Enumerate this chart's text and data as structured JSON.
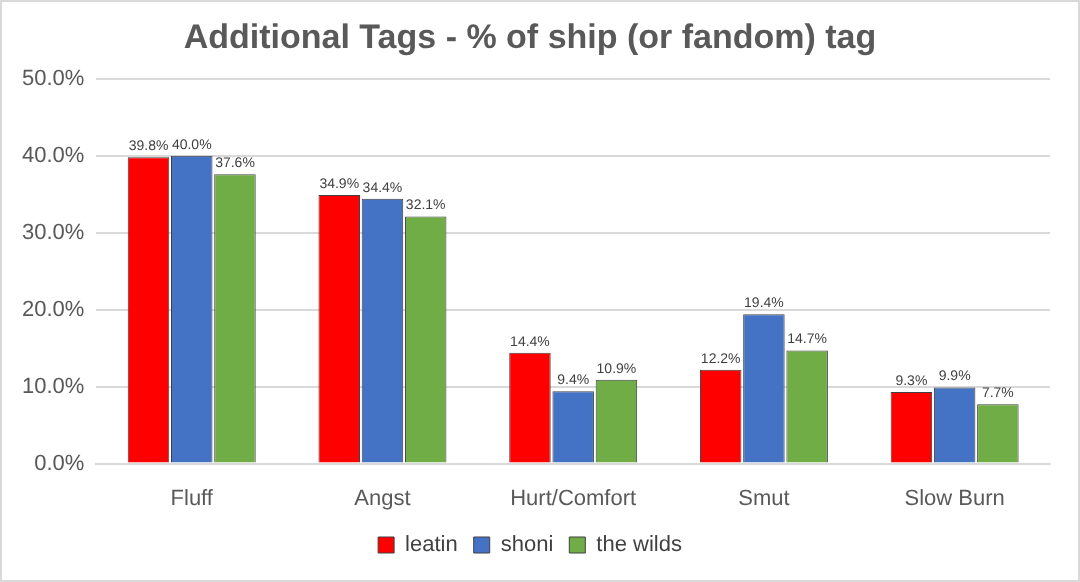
{
  "chart_data": {
    "type": "bar",
    "title": "Additional Tags - % of ship (or fandom) tag",
    "categories": [
      "Fluff",
      "Angst",
      "Hurt/Comfort",
      "Smut",
      "Slow Burn"
    ],
    "series": [
      {
        "name": "leatin",
        "color": "#ff0000",
        "values": [
          39.8,
          34.9,
          14.4,
          12.2,
          9.3
        ],
        "value_labels": [
          "39.8%",
          "34.9%",
          "14.4%",
          "12.2%",
          "9.3%"
        ]
      },
      {
        "name": "shoni",
        "color": "#4472c4",
        "values": [
          40.0,
          34.4,
          9.4,
          19.4,
          9.9
        ],
        "value_labels": [
          "40.0%",
          "34.4%",
          "9.4%",
          "19.4%",
          "9.9%"
        ]
      },
      {
        "name": "the wilds",
        "color": "#70ad47",
        "values": [
          37.6,
          32.1,
          10.9,
          14.7,
          7.7
        ],
        "value_labels": [
          "37.6%",
          "32.1%",
          "10.9%",
          "14.7%",
          "7.7%"
        ]
      }
    ],
    "ylim": [
      0,
      50
    ],
    "yticks": [
      {
        "value": 0,
        "label": "0.0%"
      },
      {
        "value": 10,
        "label": "10.0%"
      },
      {
        "value": 20,
        "label": "20.0%"
      },
      {
        "value": 30,
        "label": "30.0%"
      },
      {
        "value": 40,
        "label": "40.0%"
      },
      {
        "value": 50,
        "label": "50.0%"
      }
    ],
    "grid": "y",
    "legend": "bottom"
  }
}
